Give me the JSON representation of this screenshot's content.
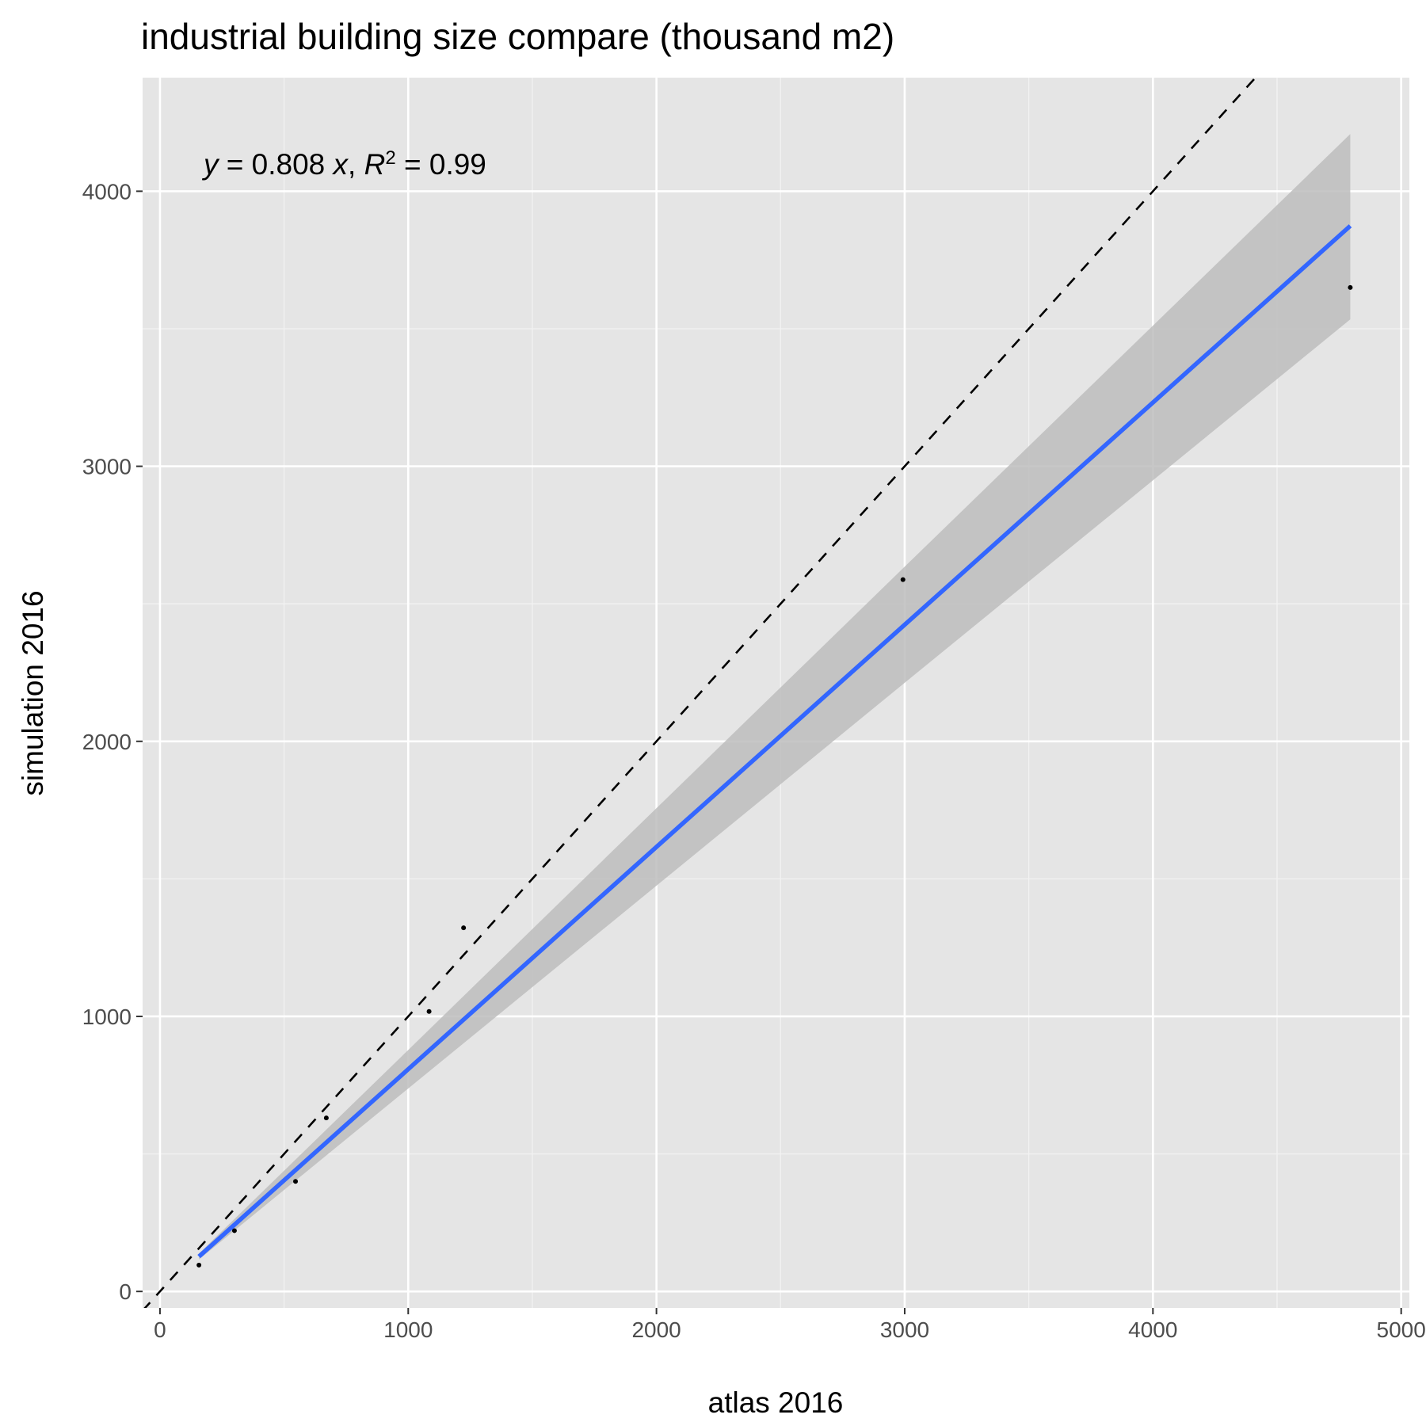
{
  "chart_data": {
    "type": "scatter",
    "title": "industrial building size compare (thousand m2)",
    "x_label": "atlas 2016",
    "y_label": "simulation 2016",
    "annotation": [
      "y",
      " = 0.808 ",
      "x",
      ", ",
      "R",
      "2",
      " = 0.99"
    ],
    "x": [
      157,
      300,
      546,
      670,
      1084,
      1223,
      2993,
      4795
    ],
    "values": [
      96,
      221,
      400,
      631,
      1018,
      1322,
      2588,
      3650
    ],
    "color": "#000000",
    "fit": {
      "color": "#3366ff",
      "band_color": "#bdbdbd",
      "x": [
        157,
        1000,
        2000,
        3000,
        4795
      ],
      "values": [
        127,
        808,
        1616,
        2424,
        3874
      ],
      "lower": [
        116,
        738,
        1475,
        2213,
        3534
      ],
      "upper": [
        138,
        878,
        1757,
        2635,
        4208
      ]
    },
    "reference_line": {
      "slope": 1,
      "intercept": 0,
      "dashed": true,
      "color": "#000000"
    },
    "xlim": [
      -70,
      5033
    ],
    "ylim": [
      -60,
      4413
    ],
    "xticks": [
      0,
      1000,
      2000,
      3000,
      4000,
      5000
    ],
    "yticks": [
      0,
      1000,
      2000,
      3000,
      4000
    ],
    "xminor": [
      500,
      1500,
      2500,
      3500,
      4500
    ],
    "yminor": [
      500,
      1500,
      2500,
      3500
    ],
    "grid": true
  }
}
